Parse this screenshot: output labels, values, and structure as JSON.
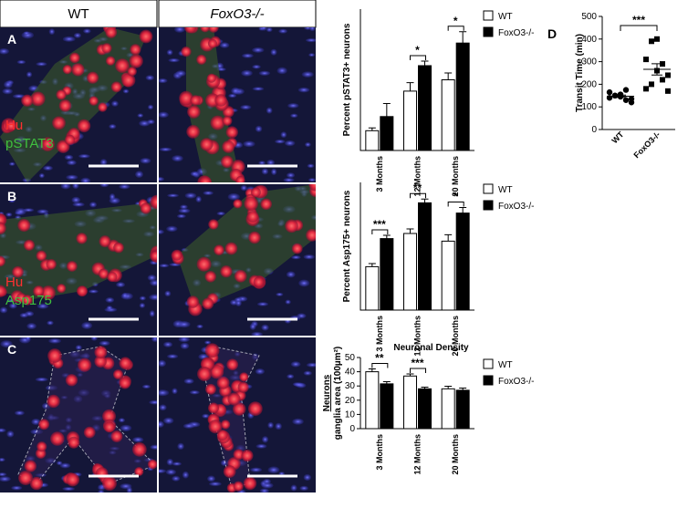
{
  "figure": {
    "columns": [
      "WT",
      "FoxO3-/-"
    ],
    "rows": [
      {
        "letter": "A",
        "stain": [
          "Hu",
          "pSTAT3"
        ]
      },
      {
        "letter": "B",
        "stain": [
          "Hu",
          "Asp175"
        ]
      },
      {
        "letter": "C"
      }
    ]
  },
  "chart_data": [
    {
      "type": "bar",
      "ylabel": [
        "Percent pSTAT3+ neurons"
      ],
      "categories": [
        "3 Months",
        "12 Months",
        "20 Months"
      ],
      "series": [
        {
          "name": "WT",
          "color": "#ffffff",
          "values": [
            3.5,
            10.5,
            12.5
          ],
          "errors": [
            0.5,
            1.5,
            1.2
          ]
        },
        {
          "name": "FoxO3-/-",
          "color": "#000000",
          "values": [
            6,
            15,
            19
          ],
          "errors": [
            2.3,
            0.8,
            2
          ]
        }
      ],
      "significance": [
        null,
        "*",
        "*"
      ],
      "ylim": [
        0,
        25
      ]
    },
    {
      "type": "bar",
      "ylabel": [
        "Percent Asp175+ neurons"
      ],
      "categories": [
        "3 Months",
        "12 Months",
        "20 Months"
      ],
      "series": [
        {
          "name": "WT",
          "color": "#ffffff",
          "values": [
            17,
            30,
            27
          ],
          "errors": [
            1.2,
            1.8,
            2.5
          ]
        },
        {
          "name": "FoxO3-/-",
          "color": "#000000",
          "values": [
            28,
            42,
            38
          ],
          "errors": [
            1.3,
            1.5,
            2.2
          ]
        }
      ],
      "significance": [
        "***",
        "**",
        "*"
      ],
      "ylim": [
        0,
        50
      ]
    },
    {
      "type": "bar",
      "title": "Neuronal Density",
      "ylabel": [
        "Neurons",
        "ganglia area (100µm²)"
      ],
      "categories": [
        "3 Months",
        "12 Months",
        "20 Months"
      ],
      "series": [
        {
          "name": "WT",
          "color": "#ffffff",
          "values": [
            40,
            37,
            28
          ],
          "errors": [
            2,
            1.5,
            1.8
          ]
        },
        {
          "name": "FoxO3-/-",
          "color": "#000000",
          "values": [
            31.5,
            28,
            27
          ],
          "errors": [
            1.5,
            1.2,
            1.5
          ]
        }
      ],
      "significance": [
        "**",
        "***",
        null
      ],
      "ylim": [
        0,
        50
      ],
      "yticks": [
        0,
        10,
        20,
        30,
        40,
        50
      ]
    },
    {
      "type": "scatter",
      "letter": "D",
      "ylabel": [
        "Transit Time (min)"
      ],
      "categories": [
        "WT",
        "FoxO3-/-"
      ],
      "groups": [
        {
          "values": [
            140,
            150,
            155,
            130,
            120,
            165,
            150,
            145,
            175,
            135
          ],
          "mean": 147,
          "sem": 5
        },
        {
          "values": [
            310,
            390,
            400,
            290,
            240,
            180,
            200,
            260,
            220,
            170
          ],
          "mean": 266,
          "sem": 25
        }
      ],
      "significance": "***",
      "ylim": [
        0,
        500
      ],
      "yticks": [
        0,
        100,
        200,
        300,
        400,
        500
      ]
    }
  ]
}
